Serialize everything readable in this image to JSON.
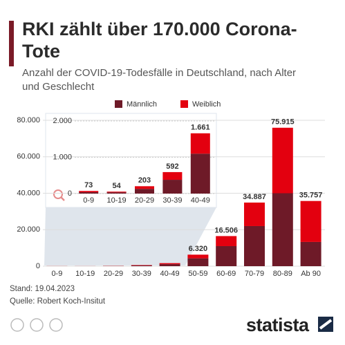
{
  "chart_data": [
    {
      "type": "bar",
      "title": "RKI zählt über 170.000 Corona-Tote",
      "subtitle": "Anzahl der COVID-19-Todesfälle in Deutschland, nach Alter und Geschlecht",
      "categories": [
        "0-9",
        "10-19",
        "20-29",
        "30-39",
        "40-49",
        "50-59",
        "60-69",
        "70-79",
        "80-89",
        "Ab 90"
      ],
      "series": [
        {
          "name": "Männlich",
          "color": "#6e1a28",
          "values": [
            40,
            35,
            130,
            380,
            1100,
            4300,
            11000,
            22000,
            40000,
            13300
          ]
        },
        {
          "name": "Weiblich",
          "color": "#e3000f",
          "values": [
            33,
            19,
            73,
            212,
            561,
            2020,
            5506,
            12887,
            35915,
            22457
          ]
        }
      ],
      "totals": [
        null,
        null,
        null,
        null,
        null,
        6320,
        16506,
        34887,
        75915,
        35757
      ],
      "total_labels": [
        null,
        null,
        null,
        null,
        null,
        "6.320",
        "16.506",
        "34.887",
        "75.915",
        "35.757"
      ],
      "ylim": [
        0,
        80000
      ],
      "yticks": [
        0,
        {
          "value": 20000,
          "label": "20.000"
        },
        {
          "value": 40000,
          "label": "40.000"
        },
        {
          "value": 60000,
          "label": "60.000"
        },
        {
          "value": 80000,
          "label": "80.000"
        }
      ],
      "grid": true,
      "legend": "top"
    },
    {
      "type": "bar",
      "categories": [
        "0-9",
        "10-19",
        "20-29",
        "30-39",
        "40-49"
      ],
      "series": [
        {
          "name": "Männlich",
          "color": "#6e1a28",
          "values": [
            40,
            35,
            130,
            380,
            1100
          ]
        },
        {
          "name": "Weiblich",
          "color": "#e3000f",
          "values": [
            33,
            19,
            73,
            212,
            561
          ]
        }
      ],
      "totals": [
        73,
        54,
        203,
        592,
        1661
      ],
      "total_labels": [
        "73",
        "54",
        "203",
        "592",
        "1.661"
      ],
      "ylim": [
        0,
        2000
      ],
      "yticks": [
        0,
        {
          "value": 1000,
          "label": "1.000"
        },
        {
          "value": 2000,
          "label": "2.000"
        }
      ],
      "grid": true
    }
  ],
  "footer": {
    "date": "Stand: 19.04.2023",
    "source": "Quelle: Robert Koch-Insitut"
  },
  "brand": "statista"
}
